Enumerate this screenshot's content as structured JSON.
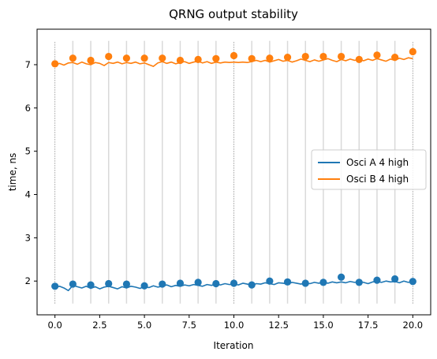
{
  "chart_data": {
    "type": "line",
    "title": "QRNG output stability",
    "xlabel": "Iteration",
    "ylabel": "time, ns",
    "xlim": [
      -1,
      21
    ],
    "ylim": [
      1.22,
      7.82
    ],
    "x_ticks": [
      0.0,
      2.5,
      5.0,
      7.5,
      10.0,
      12.5,
      15.0,
      17.5,
      20.0
    ],
    "x_tick_labels": [
      "0.0",
      "2.5",
      "5.0",
      "7.5",
      "10.0",
      "12.5",
      "15.0",
      "17.5",
      "20.0"
    ],
    "y_ticks": [
      2,
      3,
      4,
      5,
      6,
      7
    ],
    "y_tick_labels": [
      "2",
      "3",
      "4",
      "5",
      "6",
      "7"
    ],
    "legend_position": "center-right",
    "grid": false,
    "vertical_guides": {
      "dotted_positions": [
        0,
        10,
        20
      ],
      "light_positions": [
        1,
        2,
        3,
        4,
        5,
        6,
        7,
        8,
        9,
        11,
        12,
        13,
        14,
        15,
        16,
        17,
        18,
        19
      ],
      "y_range": [
        1.48,
        7.55
      ]
    },
    "series": [
      {
        "name": "Osci A 4 high",
        "color": "#1f77b4",
        "line": {
          "x": [
            0,
            0.25,
            0.5,
            0.75,
            1,
            1.25,
            1.5,
            1.75,
            2,
            2.25,
            2.5,
            2.75,
            3,
            3.25,
            3.5,
            3.75,
            4,
            4.25,
            4.5,
            4.75,
            5,
            5.25,
            5.5,
            5.75,
            6,
            6.25,
            6.5,
            6.75,
            7,
            7.25,
            7.5,
            7.75,
            8,
            8.25,
            8.5,
            8.75,
            9,
            9.25,
            9.5,
            9.75,
            10,
            10.25,
            10.5,
            10.75,
            11,
            11.25,
            11.5,
            11.75,
            12,
            12.25,
            12.5,
            12.75,
            13,
            13.25,
            13.5,
            13.75,
            14,
            14.25,
            14.5,
            14.75,
            15,
            15.25,
            15.5,
            15.75,
            16,
            16.25,
            16.5,
            16.75,
            17,
            17.25,
            17.5,
            17.75,
            18,
            18.25,
            18.5,
            18.75,
            19,
            19.25,
            19.5,
            19.75,
            20
          ],
          "y": [
            1.86,
            1.88,
            1.84,
            1.78,
            1.9,
            1.87,
            1.84,
            1.88,
            1.83,
            1.87,
            1.82,
            1.86,
            1.88,
            1.85,
            1.82,
            1.87,
            1.84,
            1.88,
            1.86,
            1.83,
            1.87,
            1.85,
            1.89,
            1.86,
            1.88,
            1.91,
            1.87,
            1.9,
            1.88,
            1.91,
            1.89,
            1.92,
            1.9,
            1.88,
            1.92,
            1.9,
            1.93,
            1.91,
            1.94,
            1.92,
            1.93,
            1.91,
            1.95,
            1.93,
            1.9,
            1.94,
            1.93,
            1.96,
            1.94,
            1.92,
            1.96,
            1.95,
            1.93,
            1.97,
            1.95,
            1.93,
            1.96,
            1.94,
            1.97,
            1.95,
            1.97,
            1.95,
            1.98,
            1.96,
            1.98,
            1.96,
            1.99,
            1.97,
            1.99,
            1.97,
            1.94,
            1.98,
            1.99,
            1.97,
            2.0,
            1.98,
            1.99,
            1.96,
            2.0,
            1.97,
            1.99
          ]
        },
        "markers": {
          "x": [
            0,
            1,
            2,
            3,
            4,
            5,
            6,
            7,
            8,
            9,
            10,
            11,
            12,
            13,
            14,
            15,
            16,
            17,
            18,
            19,
            20
          ],
          "y": [
            1.88,
            1.93,
            1.91,
            1.94,
            1.93,
            1.89,
            1.93,
            1.95,
            1.97,
            1.94,
            1.95,
            1.91,
            2.0,
            1.98,
            1.95,
            1.97,
            2.09,
            1.97,
            2.02,
            2.05,
            1.99
          ]
        }
      },
      {
        "name": "Osci B 4 high",
        "color": "#ff7f0e",
        "line": {
          "x": [
            0,
            0.25,
            0.5,
            0.75,
            1,
            1.25,
            1.5,
            1.75,
            2,
            2.25,
            2.5,
            2.75,
            3,
            3.25,
            3.5,
            3.75,
            4,
            4.25,
            4.5,
            4.75,
            5,
            5.25,
            5.5,
            5.75,
            6,
            6.25,
            6.5,
            6.75,
            7,
            7.25,
            7.5,
            7.75,
            8,
            8.25,
            8.5,
            8.75,
            9,
            9.25,
            9.5,
            9.75,
            10,
            10.25,
            10.5,
            10.75,
            11,
            11.25,
            11.5,
            11.75,
            12,
            12.25,
            12.5,
            12.75,
            13,
            13.25,
            13.5,
            13.75,
            14,
            14.25,
            14.5,
            14.75,
            15,
            15.25,
            15.5,
            15.75,
            16,
            16.25,
            16.5,
            16.75,
            17,
            17.25,
            17.5,
            17.75,
            18,
            18.25,
            18.5,
            18.75,
            19,
            19.25,
            19.5,
            19.75,
            20
          ],
          "y": [
            6.98,
            7.03,
            6.99,
            7.04,
            7.05,
            7.01,
            7.06,
            7.02,
            7.0,
            7.05,
            7.03,
            6.98,
            7.05,
            7.03,
            7.06,
            7.02,
            7.05,
            7.03,
            7.06,
            7.02,
            7.04,
            7.0,
            6.96,
            7.04,
            7.07,
            7.03,
            7.06,
            7.02,
            7.05,
            7.07,
            7.03,
            7.06,
            7.08,
            7.04,
            7.07,
            7.03,
            7.06,
            7.04,
            7.06,
            7.05,
            7.06,
            7.05,
            7.06,
            7.05,
            7.07,
            7.1,
            7.07,
            7.1,
            7.06,
            7.09,
            7.12,
            7.08,
            7.1,
            7.06,
            7.09,
            7.13,
            7.1,
            7.07,
            7.11,
            7.08,
            7.11,
            7.14,
            7.1,
            7.07,
            7.12,
            7.09,
            7.13,
            7.1,
            7.12,
            7.09,
            7.13,
            7.1,
            7.14,
            7.11,
            7.08,
            7.13,
            7.1,
            7.15,
            7.12,
            7.16,
            7.14
          ]
        },
        "markers": {
          "x": [
            0,
            1,
            2,
            3,
            4,
            5,
            6,
            7,
            8,
            9,
            10,
            11,
            12,
            13,
            14,
            15,
            16,
            17,
            18,
            19,
            20
          ],
          "y": [
            7.02,
            7.15,
            7.1,
            7.19,
            7.15,
            7.15,
            7.15,
            7.1,
            7.12,
            7.14,
            7.21,
            7.14,
            7.15,
            7.17,
            7.19,
            7.19,
            7.19,
            7.12,
            7.22,
            7.17,
            7.3
          ]
        }
      }
    ]
  }
}
